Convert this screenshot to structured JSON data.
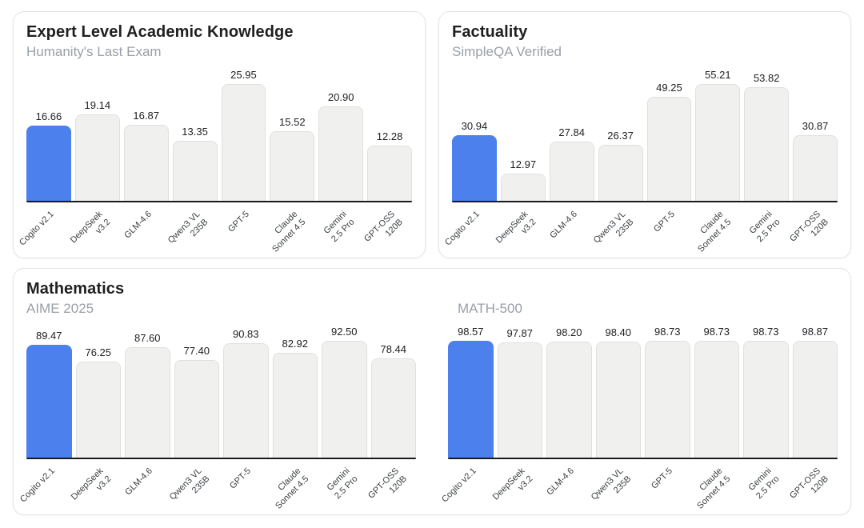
{
  "colors": {
    "accent": "#4C80EC",
    "bar_fill": "#F0F0EF",
    "bar_border": "#E0E0DE",
    "baseline": "#1A1A1A",
    "title_text": "#1F1F1F",
    "subtitle_text": "#9AA0A6",
    "value_text": "#202124",
    "axis_label_text": "#3C4043",
    "card_border": "#E3E3E3",
    "card_bg": "#FFFFFF"
  },
  "models": [
    "Cogito v2.1",
    "DeepSeek\nv3.2",
    "GLM-4.6",
    "Qwen3 VL\n235B",
    "GPT-5",
    "Claude\nSonnet 4.5",
    "Gemini\n2.5 Pro",
    "GPT-OSS\n120B"
  ],
  "cards": [
    {
      "title": "Expert Level Academic Knowledge"
    },
    {
      "title": "Factuality"
    },
    {
      "title": "Mathematics"
    }
  ],
  "chart_data": [
    {
      "type": "bar",
      "title": "Expert Level Academic Knowledge",
      "subtitle": "Humanity's Last Exam",
      "categories": [
        "Cogito v2.1",
        "DeepSeek\nv3.2",
        "GLM-4.6",
        "Qwen3 VL\n235B",
        "GPT-5",
        "Claude\nSonnet 4.5",
        "Gemini\n2.5 Pro",
        "GPT-OSS\n120B"
      ],
      "values": [
        16.66,
        19.14,
        16.87,
        13.35,
        25.95,
        15.52,
        20.9,
        12.28
      ],
      "value_label_decimals": 2,
      "highlight_index": 0,
      "highlight_color": "#4C80EC",
      "bar_color": "#F0F0EF",
      "ylim": [
        0,
        25.95
      ],
      "grid": false,
      "legend": false,
      "x_tick_rotation": -45
    },
    {
      "type": "bar",
      "title": "Factuality",
      "subtitle": "SimpleQA Verified",
      "categories": [
        "Cogito v2.1",
        "DeepSeek\nv3.2",
        "GLM-4.6",
        "Qwen3 VL\n235B",
        "GPT-5",
        "Claude\nSonnet 4.5",
        "Gemini\n2.5 Pro",
        "GPT-OSS\n120B"
      ],
      "values": [
        30.94,
        12.97,
        27.84,
        26.37,
        49.25,
        55.21,
        53.82,
        30.87
      ],
      "value_label_decimals": 2,
      "highlight_index": 0,
      "highlight_color": "#4C80EC",
      "bar_color": "#F0F0EF",
      "ylim": [
        0,
        55.21
      ],
      "grid": false,
      "legend": false,
      "x_tick_rotation": -45
    },
    {
      "type": "bar",
      "title": "Mathematics",
      "subtitle": "AIME 2025",
      "categories": [
        "Cogito v2.1",
        "DeepSeek\nv3.2",
        "GLM-4.6",
        "Qwen3 VL\n235B",
        "GPT-5",
        "Claude\nSonnet 4.5",
        "Gemini\n2.5 Pro",
        "GPT-OSS\n120B"
      ],
      "values": [
        89.47,
        76.25,
        87.6,
        77.4,
        90.83,
        82.92,
        92.5,
        78.44
      ],
      "value_label_decimals": 2,
      "highlight_index": 0,
      "highlight_color": "#4C80EC",
      "bar_color": "#F0F0EF",
      "ylim": [
        0,
        92.5
      ],
      "grid": false,
      "legend": false,
      "x_tick_rotation": -45
    },
    {
      "type": "bar",
      "title": "Mathematics",
      "subtitle": "MATH-500",
      "categories": [
        "Cogito v2.1",
        "DeepSeek\nv3.2",
        "GLM-4.6",
        "Qwen3 VL\n235B",
        "GPT-5",
        "Claude\nSonnet 4.5",
        "Gemini\n2.5 Pro",
        "GPT-OSS\n120B"
      ],
      "values": [
        98.57,
        97.87,
        98.2,
        98.4,
        98.73,
        98.73,
        98.73,
        98.87
      ],
      "value_label_decimals": 2,
      "highlight_index": 0,
      "highlight_color": "#4C80EC",
      "bar_color": "#F0F0EF",
      "ylim": [
        0,
        98.87
      ],
      "grid": false,
      "legend": false,
      "x_tick_rotation": -45
    }
  ]
}
